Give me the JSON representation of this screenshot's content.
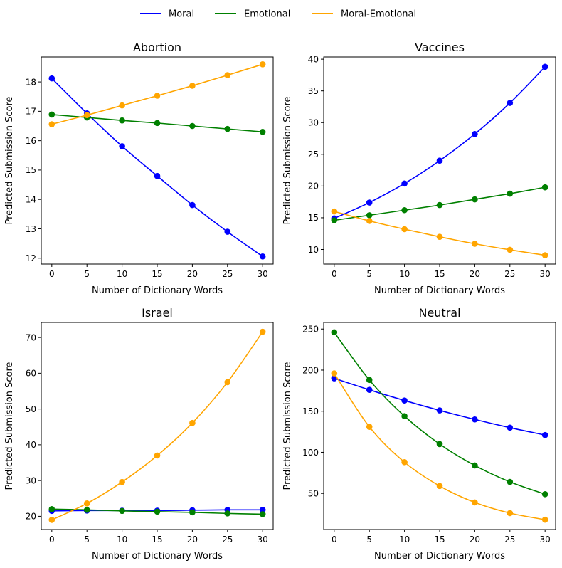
{
  "legend": [
    {
      "name": "Moral",
      "color": "#0000ff"
    },
    {
      "name": "Emotional",
      "color": "#008000"
    },
    {
      "name": "Moral-Emotional",
      "color": "#ffa500"
    }
  ],
  "chart_data": [
    {
      "type": "line",
      "title": "Abortion",
      "xlabel": "Number of Dictionary Words",
      "ylabel": "Predicted Submission Score",
      "x": [
        0,
        5,
        10,
        15,
        20,
        25,
        30
      ],
      "xlim": [
        -1.5,
        31.5
      ],
      "ylim": [
        11.8,
        18.85
      ],
      "xticks": [
        0,
        5,
        10,
        15,
        20,
        25,
        30
      ],
      "yticks": [
        12,
        13,
        14,
        15,
        16,
        17,
        18
      ],
      "legend_position": "top-center (figure)",
      "series": [
        {
          "name": "Moral",
          "color": "#0000ff",
          "values": [
            18.12,
            16.93,
            15.81,
            14.8,
            13.81,
            12.9,
            12.06
          ]
        },
        {
          "name": "Emotional",
          "color": "#008000",
          "values": [
            16.89,
            16.79,
            16.69,
            16.6,
            16.5,
            16.4,
            16.3
          ]
        },
        {
          "name": "Moral-Emotional",
          "color": "#ffa500",
          "values": [
            16.56,
            16.87,
            17.2,
            17.53,
            17.87,
            18.23,
            18.6
          ]
        }
      ]
    },
    {
      "type": "line",
      "title": "Vaccines",
      "xlabel": "Number of Dictionary Words",
      "ylabel": "Predicted Submission Score",
      "x": [
        0,
        5,
        10,
        15,
        20,
        25,
        30
      ],
      "xlim": [
        -1.5,
        31.5
      ],
      "ylim": [
        7.7,
        40.35
      ],
      "xticks": [
        0,
        5,
        10,
        15,
        20,
        25,
        30
      ],
      "yticks": [
        10,
        15,
        20,
        25,
        30,
        35,
        40
      ],
      "series": [
        {
          "name": "Moral",
          "color": "#0000ff",
          "values": [
            14.9,
            17.4,
            20.4,
            24.0,
            28.2,
            33.1,
            38.8
          ]
        },
        {
          "name": "Emotional",
          "color": "#008000",
          "values": [
            14.6,
            15.4,
            16.2,
            17.0,
            17.9,
            18.8,
            19.8
          ]
        },
        {
          "name": "Moral-Emotional",
          "color": "#ffa500",
          "values": [
            16.0,
            14.5,
            13.2,
            12.0,
            10.9,
            9.95,
            9.1
          ]
        }
      ]
    },
    {
      "type": "line",
      "title": "Israel",
      "xlabel": "Number of Dictionary Words",
      "ylabel": "Predicted Submission Score",
      "x": [
        0,
        5,
        10,
        15,
        20,
        25,
        30
      ],
      "xlim": [
        -1.5,
        31.5
      ],
      "ylim": [
        16.3,
        74.2
      ],
      "xticks": [
        0,
        5,
        10,
        15,
        20,
        25,
        30
      ],
      "yticks": [
        20,
        30,
        40,
        50,
        60,
        70
      ],
      "series": [
        {
          "name": "Moral",
          "color": "#0000ff",
          "values": [
            21.5,
            21.6,
            21.6,
            21.6,
            21.7,
            21.8,
            21.8
          ]
        },
        {
          "name": "Emotional",
          "color": "#008000",
          "values": [
            22.0,
            21.8,
            21.5,
            21.3,
            21.1,
            20.8,
            20.6
          ]
        },
        {
          "name": "Moral-Emotional",
          "color": "#ffa500",
          "values": [
            19.0,
            23.6,
            29.6,
            37.0,
            46.1,
            57.5,
            71.6
          ]
        }
      ]
    },
    {
      "type": "line",
      "title": "Neutral",
      "xlabel": "Number of Dictionary Words",
      "ylabel": "Predicted Submission Score",
      "x": [
        0,
        5,
        10,
        15,
        20,
        25,
        30
      ],
      "xlim": [
        -1.5,
        31.5
      ],
      "ylim": [
        6,
        258
      ],
      "xticks": [
        0,
        5,
        10,
        15,
        20,
        25,
        30
      ],
      "yticks": [
        50,
        100,
        150,
        200,
        250
      ],
      "series": [
        {
          "name": "Moral",
          "color": "#0000ff",
          "values": [
            190,
            176,
            163,
            151,
            140,
            130,
            121
          ]
        },
        {
          "name": "Emotional",
          "color": "#008000",
          "values": [
            246,
            188,
            144,
            110,
            84,
            64,
            49
          ]
        },
        {
          "name": "Moral-Emotional",
          "color": "#ffa500",
          "values": [
            196,
            131,
            88,
            59,
            39,
            26,
            18
          ]
        }
      ]
    }
  ]
}
